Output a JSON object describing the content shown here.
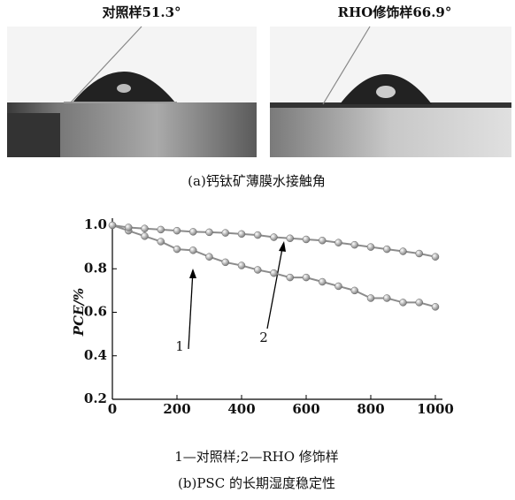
{
  "images": [
    {
      "label": "对照样51.3°"
    },
    {
      "label": "RHO修饰样66.9°"
    }
  ],
  "caption_a": "(a)钙钛矿薄膜水接触角",
  "chart_data": {
    "type": "line",
    "ylabel": "PCE/%",
    "x": [
      0,
      50,
      100,
      150,
      200,
      250,
      300,
      350,
      400,
      450,
      500,
      550,
      600,
      650,
      700,
      750,
      800,
      850,
      900,
      950,
      1000
    ],
    "series": [
      {
        "name": "1",
        "color": "#8c8c8c",
        "values": [
          1.0,
          0.975,
          0.95,
          0.925,
          0.89,
          0.885,
          0.855,
          0.83,
          0.815,
          0.795,
          0.78,
          0.76,
          0.76,
          0.74,
          0.72,
          0.7,
          0.665,
          0.665,
          0.645,
          0.645,
          0.625
        ]
      },
      {
        "name": "2",
        "color": "#8c8c8c",
        "values": [
          1.0,
          0.99,
          0.985,
          0.98,
          0.975,
          0.97,
          0.968,
          0.965,
          0.96,
          0.955,
          0.945,
          0.94,
          0.935,
          0.93,
          0.92,
          0.91,
          0.9,
          0.89,
          0.88,
          0.87,
          0.855
        ]
      }
    ],
    "xlim": [
      0,
      1000
    ],
    "xticks": [
      0,
      200,
      400,
      600,
      800,
      1000
    ],
    "ylim": [
      0.2,
      1.0
    ],
    "yticks": [
      0.2,
      0.4,
      0.6,
      0.8,
      {
        "value": 1.0,
        "label": "1.0"
      }
    ]
  },
  "legend_note": "1—对照样;2—RHO 修饰样",
  "caption_b": "(b)PSC 的长期湿度稳定性"
}
